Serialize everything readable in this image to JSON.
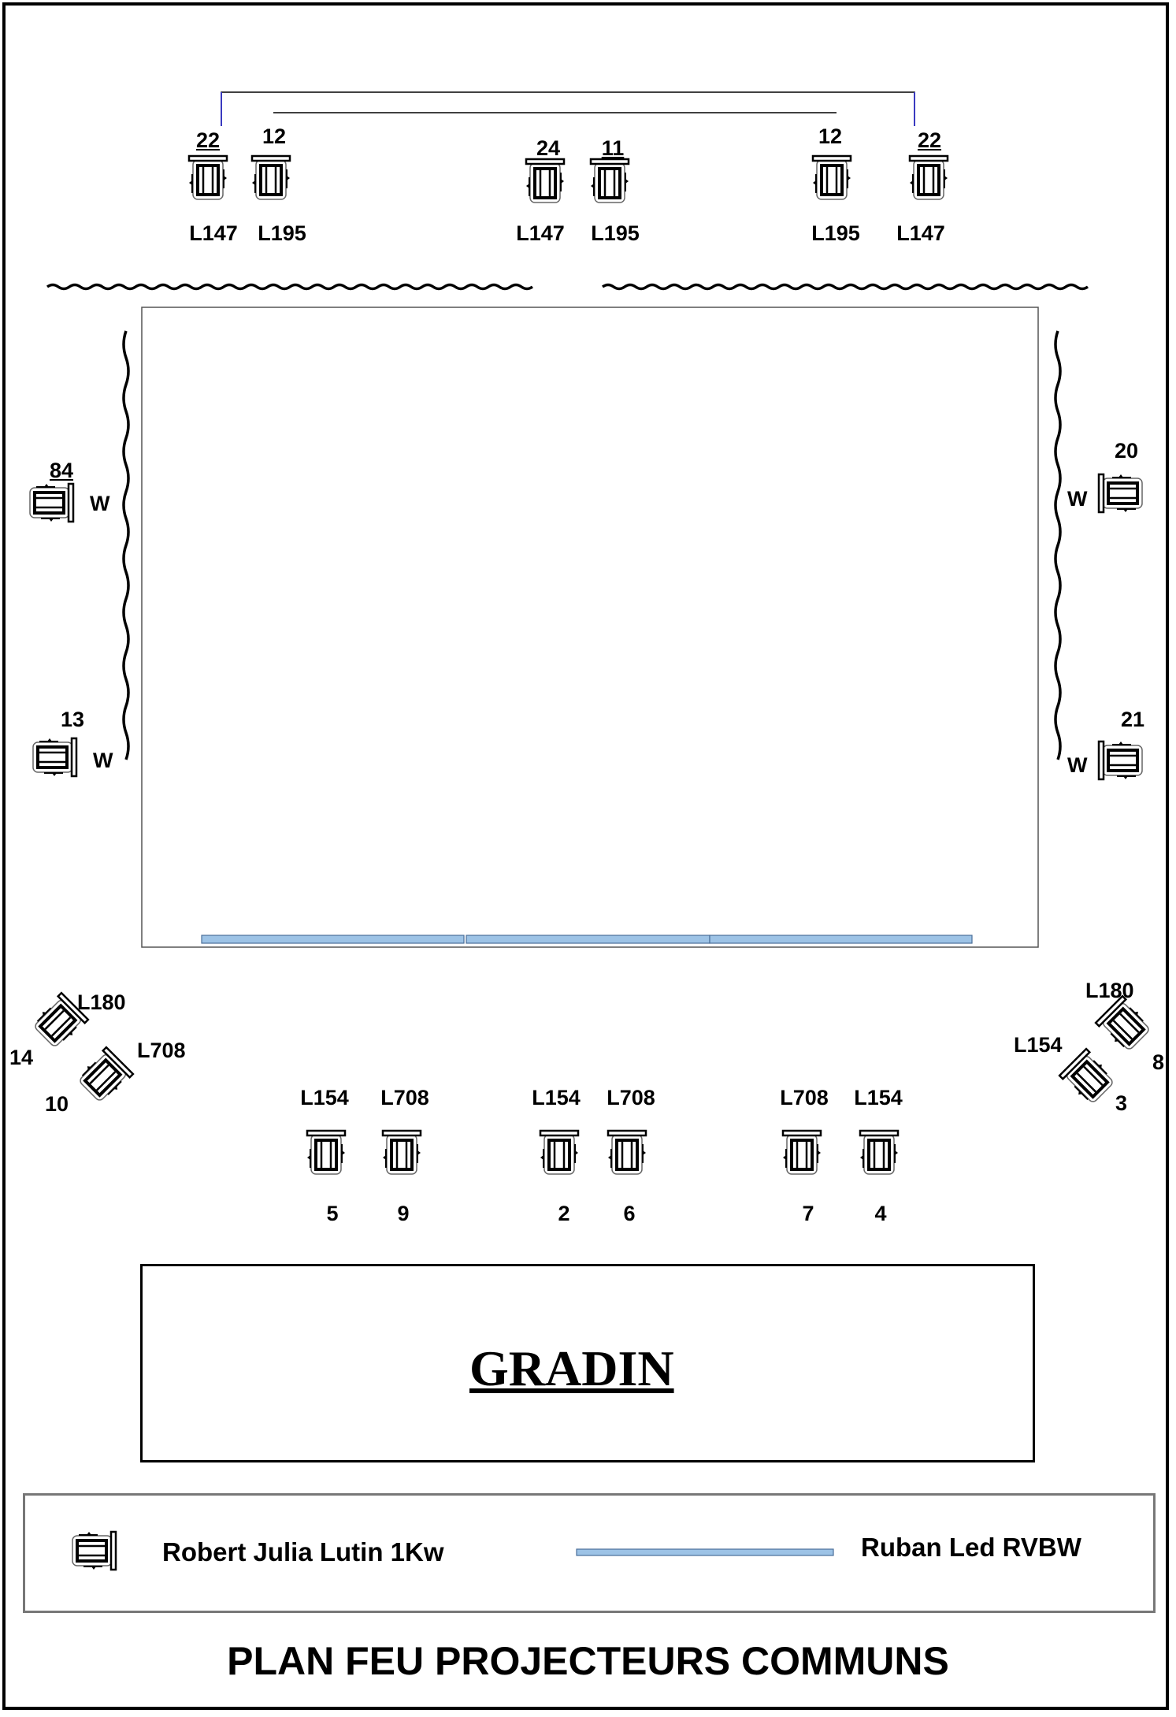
{
  "title": "PLAN FEU PROJECTEURS COMMUNS",
  "gradin_label": "GRADIN",
  "legend": {
    "projector_label": "Robert Julia Lutin 1Kw",
    "led_label": "Ruban Led RVBW",
    "led_color": "#9dc3e6"
  },
  "upstage_projectors": [
    {
      "number": "22",
      "gel": "L147"
    },
    {
      "number": "12",
      "gel": "L195"
    },
    {
      "number": "24",
      "gel": "L147"
    },
    {
      "number": "11",
      "gel": "L195"
    },
    {
      "number": "12",
      "gel": "L195"
    },
    {
      "number": "22",
      "gel": "L147"
    }
  ],
  "side_projectors": [
    {
      "number": "84",
      "gel": "W"
    },
    {
      "number": "13",
      "gel": "W"
    },
    {
      "number": "20",
      "gel": "W"
    },
    {
      "number": "21",
      "gel": "W"
    }
  ],
  "diagonal_projectors": [
    {
      "number": "14",
      "gel": "L180"
    },
    {
      "number": "10",
      "gel": "L708"
    },
    {
      "number": "8",
      "gel": "L180"
    },
    {
      "number": "3",
      "gel": "L154"
    }
  ],
  "front_projectors": [
    {
      "number": "5",
      "gel": "L154"
    },
    {
      "number": "9",
      "gel": "L708"
    },
    {
      "number": "2",
      "gel": "L154"
    },
    {
      "number": "6",
      "gel": "L708"
    },
    {
      "number": "7",
      "gel": "L708"
    },
    {
      "number": "4",
      "gel": "L154"
    }
  ]
}
